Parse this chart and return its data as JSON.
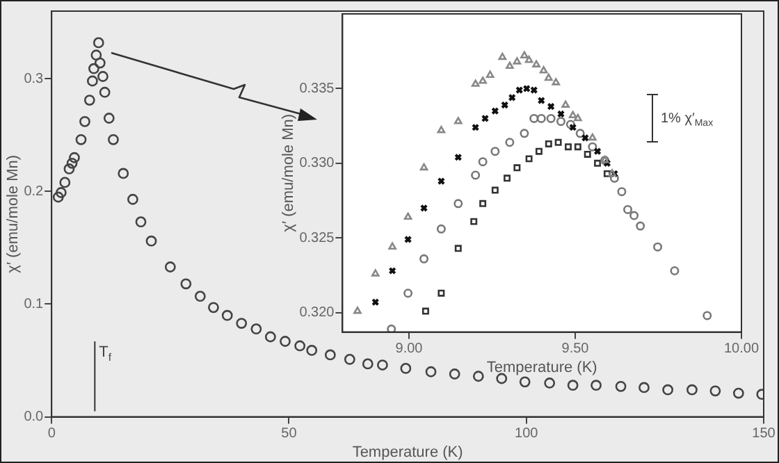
{
  "chart_data": [
    {
      "type": "scatter",
      "xlabel": "Temperature (K)",
      "ylabel": "χ′ (emu/mole Mn)",
      "color": "#444444",
      "marker": "circle",
      "x": [
        1.4,
        2.0,
        2.8,
        3.7,
        4.3,
        4.8,
        6.2,
        7.0,
        8.0,
        8.6,
        8.9,
        9.4,
        9.9,
        10.2,
        10.8,
        11.2,
        12.1,
        13.0,
        15.1,
        17.1,
        18.8,
        21.0,
        25.0,
        28.3,
        31.3,
        34.1,
        37.0,
        40.0,
        43.1,
        46.1,
        49.2,
        52.3,
        54.8,
        58.7,
        62.8,
        66.6,
        69.7,
        74.6,
        79.9,
        84.9,
        89.9,
        94.8,
        99.7,
        104.9,
        109.8,
        114.7,
        119.9,
        124.8,
        129.8,
        134.9,
        139.8,
        144.7,
        149.6
      ],
      "values": [
        0.195,
        0.199,
        0.208,
        0.22,
        0.225,
        0.23,
        0.246,
        0.262,
        0.281,
        0.298,
        0.309,
        0.321,
        0.332,
        0.314,
        0.302,
        0.288,
        0.265,
        0.246,
        0.216,
        0.193,
        0.173,
        0.156,
        0.133,
        0.118,
        0.107,
        0.097,
        0.09,
        0.083,
        0.078,
        0.071,
        0.067,
        0.063,
        0.059,
        0.055,
        0.051,
        0.047,
        0.046,
        0.043,
        0.04,
        0.038,
        0.036,
        0.034,
        0.031,
        0.03,
        0.028,
        0.028,
        0.027,
        0.026,
        0.024,
        0.024,
        0.023,
        0.021,
        0.02
      ],
      "xlim": [
        0,
        150
      ],
      "xticks": [
        0,
        50,
        100,
        150
      ],
      "ylim": [
        0,
        0.36
      ],
      "yticks": [
        {
          "value": 0,
          "label": "0.0"
        },
        0.1,
        0.2,
        0.3
      ],
      "ref_lines": [
        {
          "axis": "x",
          "value": 9.1,
          "label": "T$_{f}$"
        }
      ]
    },
    {
      "type": "scatter",
      "xlabel": "Temperature (K)",
      "ylabel": "χ′ (emu/mole Mn)",
      "series": [
        {
          "color": "#888888",
          "marker": "triangle",
          "x": [
            8.845,
            8.899,
            8.95,
            8.997,
            9.045,
            9.097,
            9.148,
            9.2,
            9.222,
            9.244,
            9.281,
            9.303,
            9.325,
            9.347,
            9.361,
            9.383,
            9.405,
            9.42,
            9.442,
            9.471,
            9.493,
            9.508,
            9.552,
            9.589,
            9.611
          ],
          "values": [
            0.3201,
            0.3226,
            0.3244,
            0.3264,
            0.3297,
            0.3322,
            0.3328,
            0.3353,
            0.3355,
            0.3359,
            0.3371,
            0.3365,
            0.3368,
            0.3372,
            0.3369,
            0.3366,
            0.3362,
            0.3357,
            0.3354,
            0.3339,
            0.3332,
            0.333,
            0.3317,
            0.3302,
            0.3293
          ]
        },
        {
          "color": "#111111",
          "marker": "cross",
          "x": [
            8.899,
            8.95,
            8.997,
            9.045,
            9.097,
            9.148,
            9.2,
            9.229,
            9.259,
            9.288,
            9.31,
            9.332,
            9.354,
            9.376,
            9.398,
            9.427,
            9.457,
            9.493,
            9.53,
            9.567,
            9.596,
            9.618
          ],
          "values": [
            0.3207,
            0.3228,
            0.3249,
            0.327,
            0.3288,
            0.3304,
            0.3324,
            0.333,
            0.3335,
            0.3339,
            0.3344,
            0.3349,
            0.335,
            0.3349,
            0.3342,
            0.3338,
            0.3333,
            0.3324,
            0.3317,
            0.3308,
            0.33,
            0.3293
          ]
        },
        {
          "color": "#777777",
          "marker": "circle",
          "x": [
            8.947,
            8.997,
            9.045,
            9.097,
            9.148,
            9.2,
            9.222,
            9.259,
            9.303,
            9.347,
            9.376,
            9.398,
            9.427,
            9.457,
            9.486,
            9.515,
            9.552,
            9.589,
            9.618,
            9.64,
            9.658,
            9.677,
            9.696,
            9.748,
            9.799,
            9.897
          ],
          "values": [
            0.3189,
            0.3213,
            0.3236,
            0.3256,
            0.3273,
            0.3292,
            0.3301,
            0.3308,
            0.3314,
            0.332,
            0.333,
            0.333,
            0.333,
            0.3328,
            0.3326,
            0.332,
            0.3311,
            0.3302,
            0.329,
            0.3281,
            0.3269,
            0.3265,
            0.3258,
            0.3244,
            0.3228,
            0.3198
          ]
        },
        {
          "color": "#333333",
          "marker": "square",
          "x": [
            9.05,
            9.097,
            9.148,
            9.195,
            9.222,
            9.259,
            9.295,
            9.325,
            9.361,
            9.391,
            9.42,
            9.449,
            9.479,
            9.508,
            9.537,
            9.567,
            9.596
          ],
          "values": [
            0.3201,
            0.3213,
            0.3243,
            0.3261,
            0.3273,
            0.3282,
            0.329,
            0.3297,
            0.3303,
            0.3308,
            0.3313,
            0.3314,
            0.3311,
            0.3311,
            0.3306,
            0.33,
            0.3293
          ]
        }
      ],
      "xlim": [
        8.8,
        10.0
      ],
      "xticks": [
        {
          "value": 9,
          "label": "9.00"
        },
        {
          "value": 9.5,
          "label": "9.50"
        },
        {
          "value": 10,
          "label": "10.00"
        }
      ],
      "ylim": [
        0.3187,
        0.34
      ],
      "yticks": [
        {
          "value": 0.32,
          "label": "0.320"
        },
        {
          "value": 0.325,
          "label": "0.325"
        },
        {
          "value": 0.33,
          "label": "0.330"
        },
        {
          "value": 0.335,
          "label": "0.335"
        }
      ],
      "annotations": [
        "1% χ′$_{Max}$"
      ]
    }
  ]
}
